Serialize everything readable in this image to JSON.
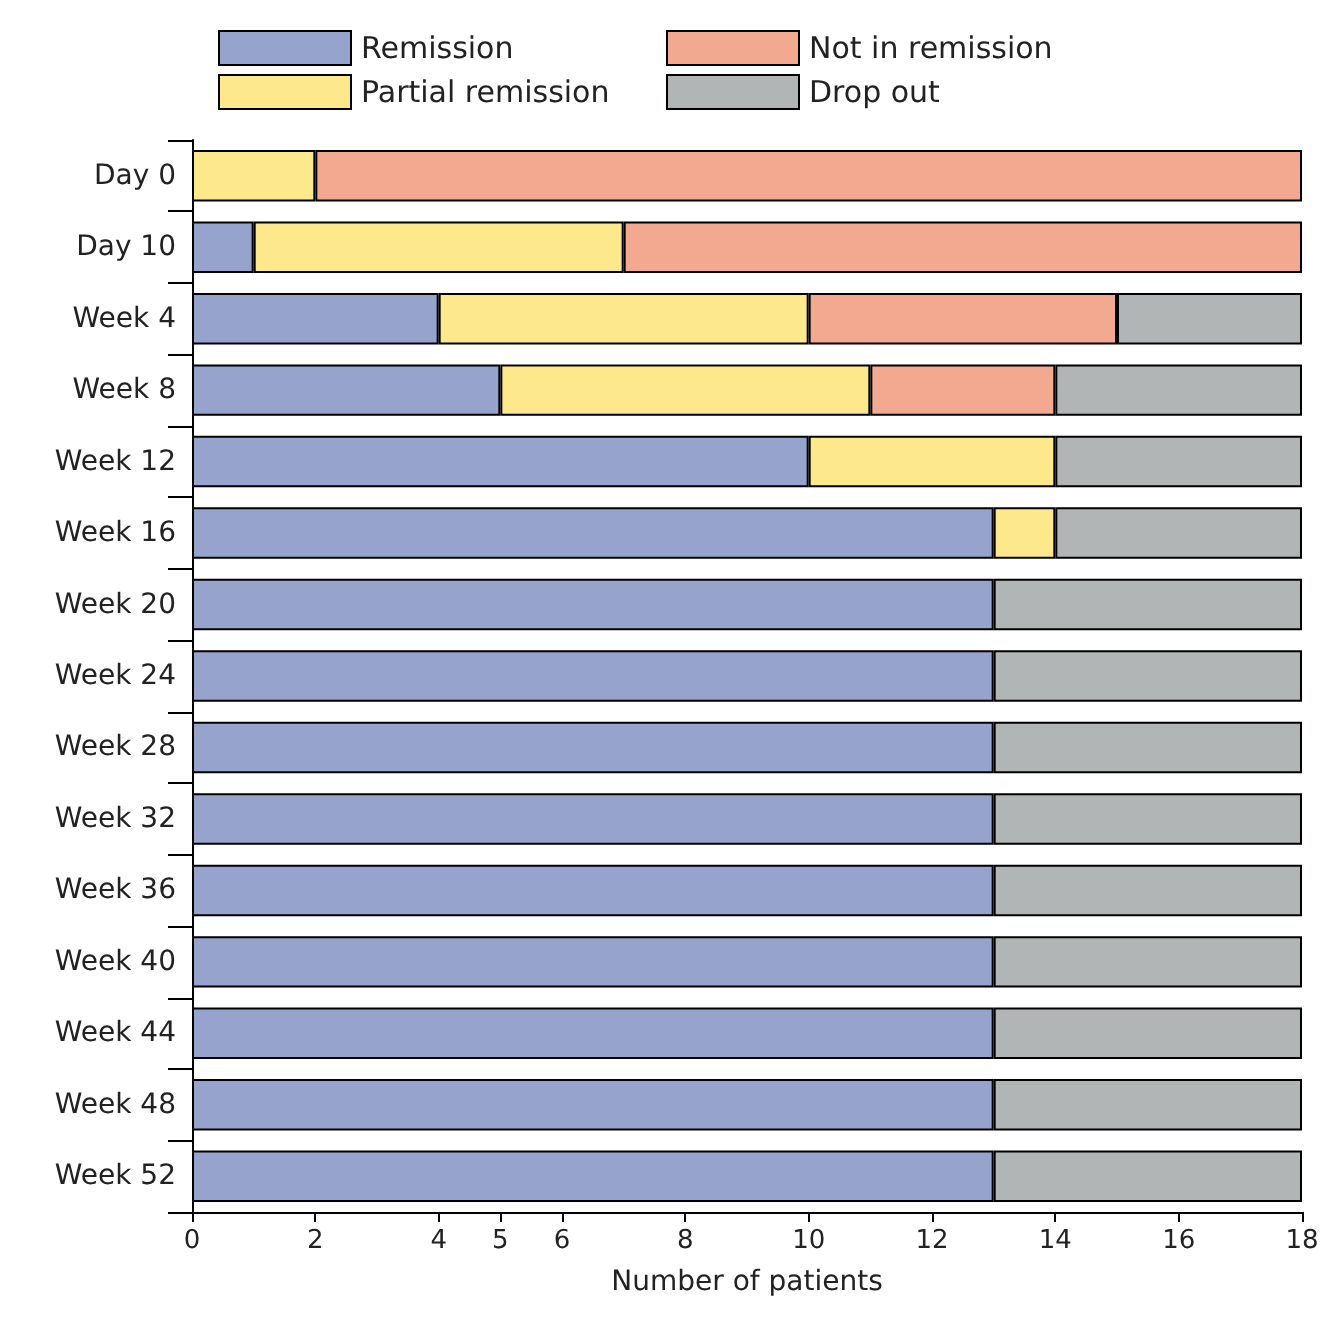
{
  "chart_data": {
    "type": "bar",
    "orientation": "horizontal",
    "stacked": true,
    "xlabel": "Number of patients",
    "categories": [
      "Day 0",
      "Day 10",
      "Week 4",
      "Week 8",
      "Week 12",
      "Week 16",
      "Week 20",
      "Week 24",
      "Week 28",
      "Week 32",
      "Week 36",
      "Week 40",
      "Week 44",
      "Week 48",
      "Week 52"
    ],
    "series": [
      {
        "name": "Remission",
        "color": "#96a3cc",
        "values": [
          0,
          1,
          4,
          5,
          10,
          13,
          13,
          13,
          13,
          13,
          13,
          13,
          13,
          13,
          13
        ]
      },
      {
        "name": "Partial remission",
        "color": "#fde98b",
        "values": [
          2,
          6,
          6,
          6,
          4,
          1,
          0,
          0,
          0,
          0,
          0,
          0,
          0,
          0,
          0
        ]
      },
      {
        "name": "Not in remission",
        "color": "#f2a98f",
        "values": [
          16,
          11,
          5,
          3,
          0,
          0,
          0,
          0,
          0,
          0,
          0,
          0,
          0,
          0,
          0
        ]
      },
      {
        "name": "Drop out",
        "color": "#b1b5b6",
        "values": [
          0,
          0,
          3,
          4,
          4,
          4,
          5,
          5,
          5,
          5,
          5,
          5,
          5,
          5,
          5
        ]
      }
    ],
    "xlim": [
      0,
      18
    ],
    "xticks": [
      0,
      2,
      4,
      5,
      6,
      8,
      10,
      12,
      14,
      16,
      18
    ],
    "grid": false,
    "legend": "top"
  }
}
